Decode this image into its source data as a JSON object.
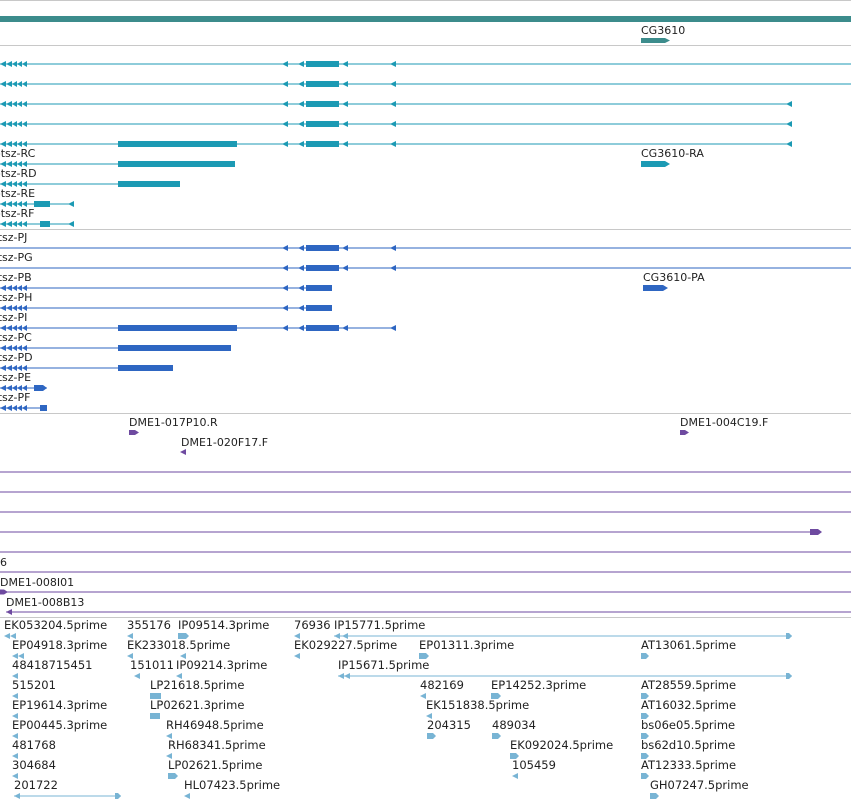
{
  "colors": {
    "background": "#ffffff",
    "separator": "#c8c8c8",
    "gene_span": "#3c8c8c",
    "transcript_cyan": "#1c9ab4",
    "transcript_blue": "#2e66c2",
    "bac_end_purple": "#6e4aa0",
    "est_light_blue": "#78b4d4",
    "text": "#222222"
  },
  "tracks": {
    "gene": {
      "labels": [
        "CG3610"
      ]
    },
    "transcripts_upper": {
      "labels": [
        "otsz-RC",
        "otsz-RD",
        "otsz-RE",
        "otsz-RF",
        "CG3610-RA"
      ]
    },
    "transcripts_lower": {
      "labels": [
        "otsz-PJ",
        "otsz-PG",
        "otsz-PB",
        "otsz-PH",
        "otsz-PI",
        "otsz-PC",
        "otsz-PD",
        "otsz-PE",
        "otsz-PF",
        "CG3610-PA"
      ]
    },
    "bac_ends": {
      "labels": [
        "DME1-017P10.R",
        "DME1-020F17.F",
        "DME1-004C19.F"
      ]
    },
    "clones": {
      "labels": [
        "6",
        "DME1-008I01",
        "DME1-008B13"
      ]
    },
    "ests": {
      "labels": [
        "EK053204.5prime",
        "355176",
        "IP09514.3prime",
        "76936",
        "IP15771.5prime",
        "EP04918.3prime",
        "EK233018.5prime",
        "EK029227.5prime",
        "EP01311.3prime",
        "AT13061.5prime",
        "48418715451",
        "151011",
        "IP09214.3prime",
        "IP15671.5prime",
        "515201",
        "LP21618.5prime",
        "482169",
        "EP14252.3prime",
        "AT28559.5prime",
        "EP19614.3prime",
        "LP02621.3prime",
        "EK151838.5prime",
        "AT16032.5prime",
        "EP00445.3prime",
        "RH46948.5prime",
        "204315",
        "489034",
        "bs06e05.5prime",
        "481768",
        "RH68341.5prime",
        "EK092024.5prime",
        "bs62d10.5prime",
        "304684",
        "LP02621.5prime",
        "105459",
        "AT12333.5prime",
        "201722",
        "HL07423.5prime",
        "GH07247.5prime"
      ]
    }
  }
}
